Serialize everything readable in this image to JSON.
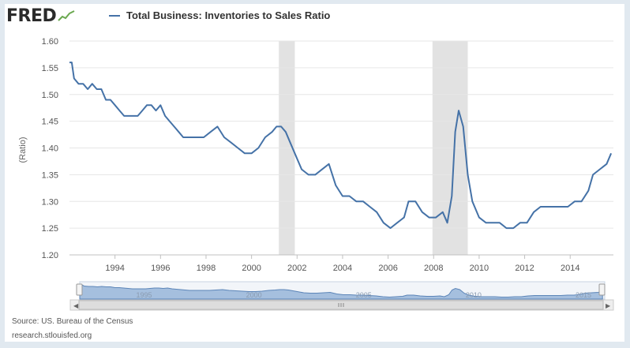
{
  "logo": {
    "text": "FRED"
  },
  "footer": {
    "source": "Source: US. Bureau of the Census",
    "site": "research.stlouisfed.org"
  },
  "colors": {
    "series": "#4572a7",
    "recession": "#e2e2e2",
    "grid": "#e6e6e6",
    "navigator_fill": "#a5bfde"
  },
  "chart_data": {
    "type": "line",
    "title": "",
    "ylabel": "(Ratio)",
    "xlabel": "",
    "xlim": [
      1992.0,
      2015.9
    ],
    "ylim": [
      1.2,
      1.6
    ],
    "yticks": [
      1.2,
      1.25,
      1.3,
      1.35,
      1.4,
      1.45,
      1.5,
      1.55,
      1.6
    ],
    "xticks": [
      1994,
      1996,
      1998,
      2000,
      2002,
      2004,
      2006,
      2008,
      2010,
      2012,
      2014
    ],
    "grid": true,
    "legend": "top-left",
    "recessions": [
      [
        2001.2,
        2001.9
      ],
      [
        2007.95,
        2009.5
      ]
    ],
    "series": [
      {
        "name": "Total Business: Inventories to Sales Ratio",
        "x": [
          1992.0,
          1992.1,
          1992.2,
          1992.4,
          1992.6,
          1992.8,
          1993.0,
          1993.2,
          1993.4,
          1993.6,
          1993.8,
          1994.0,
          1994.2,
          1994.4,
          1994.6,
          1994.8,
          1995.0,
          1995.2,
          1995.4,
          1995.6,
          1995.8,
          1996.0,
          1996.2,
          1996.4,
          1996.6,
          1996.8,
          1997.0,
          1997.3,
          1997.6,
          1997.9,
          1998.2,
          1998.5,
          1998.8,
          1999.1,
          1999.4,
          1999.7,
          2000.0,
          2000.3,
          2000.6,
          2000.9,
          2001.1,
          2001.3,
          2001.5,
          2001.7,
          2001.9,
          2002.2,
          2002.5,
          2002.8,
          2003.1,
          2003.4,
          2003.7,
          2004.0,
          2004.3,
          2004.6,
          2004.9,
          2005.2,
          2005.5,
          2005.8,
          2006.1,
          2006.4,
          2006.7,
          2006.9,
          2007.2,
          2007.5,
          2007.8,
          2008.1,
          2008.4,
          2008.6,
          2008.8,
          2008.95,
          2009.1,
          2009.3,
          2009.5,
          2009.7,
          2010.0,
          2010.3,
          2010.6,
          2010.9,
          2011.2,
          2011.5,
          2011.8,
          2012.1,
          2012.4,
          2012.7,
          2013.0,
          2013.3,
          2013.6,
          2013.9,
          2014.2,
          2014.5,
          2014.8,
          2015.0,
          2015.3,
          2015.6,
          2015.8
        ],
        "values": [
          1.56,
          1.56,
          1.53,
          1.52,
          1.52,
          1.51,
          1.52,
          1.51,
          1.51,
          1.49,
          1.49,
          1.48,
          1.47,
          1.46,
          1.46,
          1.46,
          1.46,
          1.47,
          1.48,
          1.48,
          1.47,
          1.48,
          1.46,
          1.45,
          1.44,
          1.43,
          1.42,
          1.42,
          1.42,
          1.42,
          1.43,
          1.44,
          1.42,
          1.41,
          1.4,
          1.39,
          1.39,
          1.4,
          1.42,
          1.43,
          1.44,
          1.44,
          1.43,
          1.41,
          1.39,
          1.36,
          1.35,
          1.35,
          1.36,
          1.37,
          1.33,
          1.31,
          1.31,
          1.3,
          1.3,
          1.29,
          1.28,
          1.26,
          1.25,
          1.26,
          1.27,
          1.3,
          1.3,
          1.28,
          1.27,
          1.27,
          1.28,
          1.26,
          1.31,
          1.43,
          1.47,
          1.44,
          1.35,
          1.3,
          1.27,
          1.26,
          1.26,
          1.26,
          1.25,
          1.25,
          1.26,
          1.26,
          1.28,
          1.29,
          1.29,
          1.29,
          1.29,
          1.29,
          1.3,
          1.3,
          1.32,
          1.35,
          1.36,
          1.37,
          1.39
        ]
      }
    ],
    "navigator": {
      "labels": [
        "1995",
        "2000",
        "2005",
        "2010",
        "2015"
      ]
    }
  }
}
